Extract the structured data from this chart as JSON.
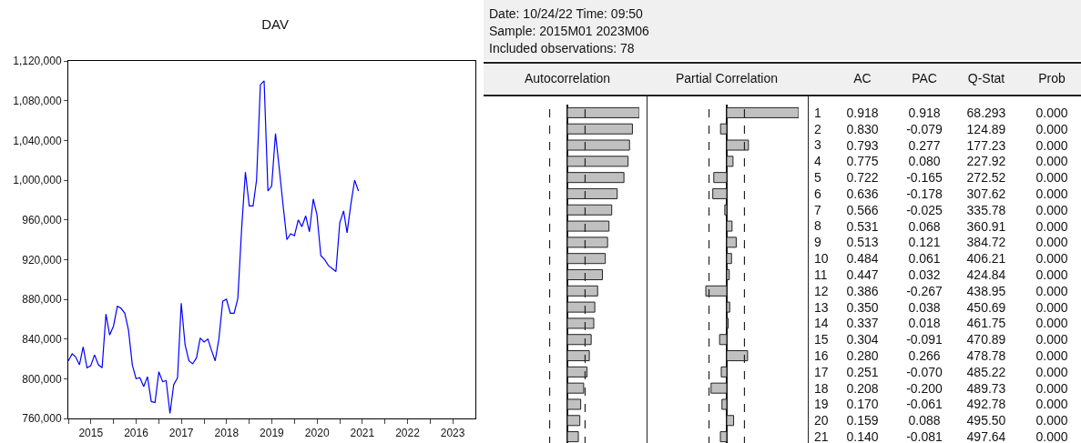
{
  "chart_data": [
    {
      "type": "line",
      "title": "DAV",
      "x": [
        "2015-01",
        "2015-02",
        "2015-03",
        "2015-04",
        "2015-05",
        "2015-06",
        "2015-07",
        "2015-08",
        "2015-09",
        "2015-10",
        "2015-11",
        "2015-12",
        "2016-01",
        "2016-02",
        "2016-03",
        "2016-04",
        "2016-05",
        "2016-06",
        "2016-07",
        "2016-08",
        "2016-09",
        "2016-10",
        "2016-11",
        "2016-12",
        "2017-01",
        "2017-02",
        "2017-03",
        "2017-04",
        "2017-05",
        "2017-06",
        "2017-07",
        "2017-08",
        "2017-09",
        "2017-10",
        "2017-11",
        "2017-12",
        "2018-01",
        "2018-02",
        "2018-03",
        "2018-04",
        "2018-05",
        "2018-06",
        "2018-07",
        "2018-08",
        "2018-09",
        "2018-10",
        "2018-11",
        "2018-12",
        "2019-01",
        "2019-02",
        "2019-03",
        "2019-04",
        "2019-05",
        "2019-06",
        "2019-07",
        "2019-08",
        "2019-09",
        "2019-10",
        "2019-11",
        "2019-12",
        "2020-01",
        "2020-02",
        "2020-03",
        "2020-04",
        "2020-05",
        "2020-06",
        "2020-07",
        "2020-08",
        "2020-09",
        "2020-10",
        "2020-11",
        "2020-12",
        "2021-01",
        "2021-02",
        "2021-03",
        "2021-04",
        "2021-05",
        "2021-06"
      ],
      "series": [
        {
          "color": "#0000ff",
          "values": [
            818000,
            825000,
            822000,
            814000,
            832000,
            811000,
            813000,
            824000,
            814000,
            811000,
            865000,
            844000,
            853000,
            873000,
            871000,
            866000,
            849000,
            814000,
            800000,
            801000,
            792000,
            802000,
            777000,
            776000,
            807000,
            797000,
            798000,
            765000,
            794000,
            801000,
            876000,
            834000,
            818000,
            815000,
            821000,
            841000,
            837000,
            840000,
            829000,
            818000,
            840000,
            878000,
            880000,
            866000,
            866000,
            881000,
            952000,
            1008000,
            974000,
            974000,
            1000000,
            1096000,
            1100000,
            989000,
            994000,
            1047000,
            1011000,
            975000,
            940000,
            946000,
            944000,
            960000,
            953000,
            964000,
            948000,
            981000,
            965000,
            924000,
            920000,
            914000,
            911000,
            908000,
            957000,
            969000,
            947000,
            976000,
            1000000,
            989000
          ]
        }
      ],
      "xlim": [
        "2015-01-01",
        "2024-01-01"
      ],
      "xticks": [
        {
          "value": "2015-01-01",
          "label": null
        },
        {
          "value": "2015-07-02",
          "label": "2015"
        },
        {
          "value": "2016-01-01",
          "label": null
        },
        {
          "value": "2016-07-02",
          "label": "2016"
        },
        {
          "value": "2017-01-01",
          "label": null
        },
        {
          "value": "2017-07-02",
          "label": "2017"
        },
        {
          "value": "2018-01-01",
          "label": null
        },
        {
          "value": "2018-07-02",
          "label": "2018"
        },
        {
          "value": "2019-01-01",
          "label": null
        },
        {
          "value": "2019-07-02",
          "label": "2019"
        },
        {
          "value": "2020-01-01",
          "label": null
        },
        {
          "value": "2020-07-02",
          "label": "2020"
        },
        {
          "value": "2021-01-01",
          "label": null
        },
        {
          "value": "2021-07-02",
          "label": "2021"
        },
        {
          "value": "2022-01-01",
          "label": null
        },
        {
          "value": "2022-07-02",
          "label": "2022"
        },
        {
          "value": "2023-01-01",
          "label": null
        },
        {
          "value": "2023-07-02",
          "label": "2023"
        }
      ],
      "ylim": [
        760000,
        1120000
      ],
      "yticks": [
        {
          "value": 760000,
          "label": "760,000"
        },
        {
          "value": 800000,
          "label": "800,000"
        },
        {
          "value": 840000,
          "label": "840,000"
        },
        {
          "value": 880000,
          "label": "880,000"
        },
        {
          "value": 920000,
          "label": "920,000"
        },
        {
          "value": 960000,
          "label": "960,000"
        },
        {
          "value": 1000000,
          "label": "1,000,000"
        },
        {
          "value": 1040000,
          "label": "1,040,000"
        },
        {
          "value": 1080000,
          "label": "1,080,000"
        },
        {
          "value": 1120000,
          "label": "1,120,000"
        }
      ],
      "grid": false
    },
    {
      "type": "other",
      "annotations": [
        "Date: 10/24/22   Time: 09:50",
        "Sample: 2015M01 2023M06",
        "Included observations: 78"
      ]
    },
    {
      "type": "bar",
      "orientation": "horizontal",
      "title": "Autocorrelation",
      "tick_labels": false,
      "categories": [
        "1",
        "2",
        "3",
        "4",
        "5",
        "6",
        "7",
        "8",
        "9",
        "10",
        "11",
        "12",
        "13",
        "14",
        "15",
        "16",
        "17",
        "18",
        "19",
        "20",
        "21"
      ],
      "series": [
        {
          "name": "AC",
          "color": "#c0c0c0",
          "values": [
            0.918,
            0.83,
            0.793,
            0.775,
            0.722,
            0.636,
            0.566,
            0.531,
            0.513,
            0.484,
            0.447,
            0.386,
            0.35,
            0.337,
            0.304,
            0.28,
            0.251,
            0.208,
            0.17,
            0.159,
            0.14
          ],
          "value_labels": [
            "0.918",
            "0.830",
            "0.793",
            "0.775",
            "0.722",
            "0.636",
            "0.566",
            "0.531",
            "0.513",
            "0.484",
            "0.447",
            "0.386",
            "0.350",
            "0.337",
            "0.304",
            "0.280",
            "0.251",
            "0.208",
            "0.170",
            "0.159",
            "0.140"
          ]
        }
      ],
      "ref_lines": [
        {
          "axis": "x",
          "value": -0.226,
          "line_style": "dashed"
        },
        {
          "axis": "x",
          "value": 0.226,
          "line_style": "dashed"
        }
      ]
    },
    {
      "type": "bar",
      "orientation": "horizontal",
      "title": "Partial Correlation",
      "tick_labels": "y",
      "categories": [
        "1",
        "2",
        "3",
        "4",
        "5",
        "6",
        "7",
        "8",
        "9",
        "10",
        "11",
        "12",
        "13",
        "14",
        "15",
        "16",
        "17",
        "18",
        "19",
        "20",
        "21"
      ],
      "series": [
        {
          "name": "PAC",
          "color": "#c0c0c0",
          "values": [
            0.918,
            -0.079,
            0.277,
            0.08,
            -0.165,
            -0.178,
            -0.025,
            0.068,
            0.121,
            0.061,
            0.032,
            -0.267,
            0.038,
            0.018,
            -0.091,
            0.266,
            -0.07,
            -0.2,
            -0.061,
            0.088,
            -0.081
          ],
          "value_labels": [
            "0.918",
            "-0.079",
            "0.277",
            "0.080",
            "-0.165",
            "-0.178",
            "-0.025",
            "0.068",
            "0.121",
            "0.061",
            "0.032",
            "-0.267",
            "0.038",
            "0.018",
            "-0.091",
            "0.266",
            "-0.070",
            "-0.200",
            "-0.061",
            "0.088",
            "-0.081"
          ]
        }
      ],
      "ref_lines": [
        {
          "axis": "x",
          "value": -0.226,
          "line_style": "dashed"
        },
        {
          "axis": "x",
          "value": 0.226,
          "line_style": "dashed"
        }
      ]
    },
    {
      "type": "other",
      "annotations": [
        "Q-Stat",
        "68.293",
        "124.89",
        "177.23",
        "227.92",
        "272.52",
        "307.62",
        "335.78",
        "360.91",
        "384.72",
        "406.21",
        "424.84",
        "438.95",
        "450.69",
        "461.75",
        "470.89",
        "478.78",
        "485.22",
        "489.73",
        "492.78",
        "495.50",
        "497.64",
        "Prob",
        "0.000",
        "0.000",
        "0.000",
        "0.000",
        "0.000",
        "0.000",
        "0.000",
        "0.000",
        "0.000",
        "0.000",
        "0.000",
        "0.000",
        "0.000",
        "0.000",
        "0.000",
        "0.000",
        "0.000",
        "0.000",
        "0.000",
        "0.000",
        "0.000"
      ]
    }
  ]
}
